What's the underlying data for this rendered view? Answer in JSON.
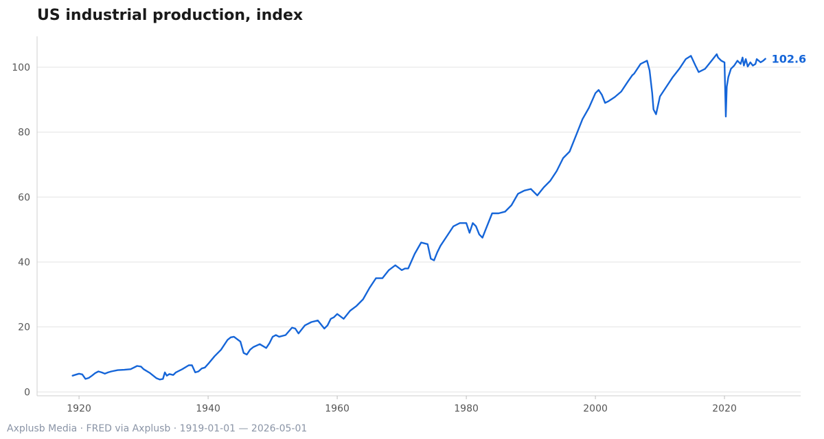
{
  "title": "US industrial production, index",
  "footer": "Axplusb Media · FRED via Axplusb · 1919-01-01 — 2026-05-01",
  "colors": {
    "line": "#1565d8",
    "grid": "#e3e3e3",
    "title": "#1a1a1a",
    "footer": "#8a94a6"
  },
  "chart_data": {
    "type": "line",
    "title": "US industrial production, index",
    "xlabel": "",
    "ylabel": "",
    "xlim": [
      1913.5,
      2031.8
    ],
    "ylim": [
      -1.2,
      109.5
    ],
    "x_ticks": [
      1920,
      1940,
      1960,
      1980,
      2000,
      2020
    ],
    "y_ticks": [
      0,
      20,
      40,
      60,
      80,
      100
    ],
    "grid": "horizontal",
    "legend": "none",
    "last_value_label": "102.6",
    "series": [
      {
        "x": [
          1919.0,
          1919.5,
          1920.0,
          1920.5,
          1921.0,
          1921.5,
          1922.0,
          1922.5,
          1923.0,
          1923.5,
          1924.0,
          1924.5,
          1925.0,
          1926.0,
          1927.0,
          1928.0,
          1929.0,
          1929.6,
          1930.0,
          1931.0,
          1932.0,
          1932.5,
          1933.0,
          1933.3,
          1933.6,
          1934.0,
          1934.6,
          1935.0,
          1936.0,
          1937.0,
          1937.5,
          1938.0,
          1938.5,
          1939.0,
          1939.5,
          1940.0,
          1941.0,
          1942.0,
          1943.0,
          1943.5,
          1944.0,
          1945.0,
          1945.5,
          1946.0,
          1946.5,
          1947.0,
          1948.0,
          1949.0,
          1949.5,
          1950.0,
          1950.5,
          1951.0,
          1952.0,
          1953.0,
          1953.5,
          1954.0,
          1955.0,
          1956.0,
          1957.0,
          1958.0,
          1958.5,
          1959.0,
          1959.5,
          1960.0,
          1961.0,
          1962.0,
          1963.0,
          1964.0,
          1965.0,
          1966.0,
          1967.0,
          1968.0,
          1969.0,
          1970.0,
          1970.5,
          1971.0,
          1972.0,
          1973.0,
          1974.0,
          1974.5,
          1975.0,
          1975.5,
          1976.0,
          1977.0,
          1978.0,
          1979.0,
          1980.0,
          1980.5,
          1981.0,
          1981.5,
          1982.0,
          1982.5,
          1983.0,
          1984.0,
          1985.0,
          1986.0,
          1987.0,
          1988.0,
          1989.0,
          1990.0,
          1991.0,
          1992.0,
          1993.0,
          1994.0,
          1995.0,
          1996.0,
          1997.0,
          1998.0,
          1999.0,
          2000.0,
          2000.5,
          2001.0,
          2001.5,
          2002.0,
          2003.0,
          2004.0,
          2005.0,
          2005.7,
          2006.0,
          2007.0,
          2008.0,
          2008.4,
          2008.8,
          2009.0,
          2009.4,
          2010.0,
          2011.0,
          2012.0,
          2013.0,
          2014.0,
          2014.8,
          2015.5,
          2016.0,
          2016.5,
          2017.0,
          2018.0,
          2018.8,
          2019.0,
          2019.5,
          2020.0,
          2020.2,
          2020.35,
          2020.6,
          2021.0,
          2021.5,
          2022.0,
          2022.5,
          2022.8,
          2023.0,
          2023.3,
          2023.6,
          2024.0,
          2024.4,
          2024.8,
          2025.0,
          2025.3,
          2025.6,
          2026.0,
          2026.33
        ],
        "values": [
          5.0,
          5.3,
          5.6,
          5.4,
          4.0,
          4.3,
          5.0,
          5.8,
          6.3,
          6.0,
          5.6,
          6.0,
          6.3,
          6.7,
          6.8,
          7.0,
          8.0,
          7.8,
          7.0,
          5.8,
          4.2,
          3.8,
          4.0,
          6.0,
          5.0,
          5.5,
          5.2,
          6.0,
          7.0,
          8.2,
          8.2,
          6.0,
          6.3,
          7.2,
          7.5,
          8.6,
          11.0,
          13.0,
          16.0,
          16.8,
          17.0,
          15.5,
          12.0,
          11.5,
          13.0,
          13.8,
          14.7,
          13.5,
          15.0,
          17.0,
          17.5,
          17.0,
          17.5,
          19.8,
          19.5,
          18.0,
          20.5,
          21.5,
          22.0,
          19.5,
          20.5,
          22.5,
          23.0,
          24.0,
          22.5,
          25.0,
          26.5,
          28.5,
          32.0,
          35.0,
          35.0,
          37.5,
          39.0,
          37.5,
          38.0,
          38.0,
          42.5,
          46.0,
          45.5,
          41.0,
          40.5,
          43.0,
          45.0,
          48.0,
          51.0,
          52.0,
          52.0,
          49.0,
          52.0,
          51.0,
          48.5,
          47.5,
          50.0,
          55.0,
          55.0,
          55.5,
          57.5,
          61.0,
          62.0,
          62.5,
          60.5,
          63.0,
          65.0,
          68.0,
          72.0,
          74.0,
          79.0,
          84.0,
          87.5,
          92.0,
          93.0,
          91.5,
          89.0,
          89.5,
          90.8,
          92.5,
          95.5,
          97.5,
          98.0,
          101.0,
          102.0,
          99.0,
          92.0,
          87.0,
          85.5,
          91.0,
          94.0,
          97.0,
          99.5,
          102.5,
          103.5,
          100.5,
          98.5,
          99.0,
          99.5,
          102.0,
          104.0,
          103.0,
          102.0,
          101.5,
          84.8,
          94.0,
          97.0,
          99.5,
          100.5,
          102.0,
          101.0,
          103.0,
          100.5,
          102.5,
          100.2,
          101.5,
          100.5,
          101.0,
          102.5,
          102.0,
          101.5,
          102.0,
          102.6
        ]
      }
    ]
  }
}
